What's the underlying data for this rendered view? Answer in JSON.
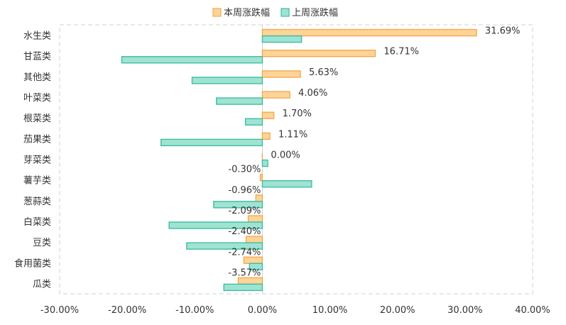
{
  "chart_data": {
    "type": "bar",
    "orientation": "horizontal",
    "categories": [
      "水生类",
      "甘蓝类",
      "其他类",
      "叶菜类",
      "根菜类",
      "茄果类",
      "芽菜类",
      "薯芋类",
      "葱蒜类",
      "白菜类",
      "豆类",
      "食用菌类",
      "瓜类"
    ],
    "series": [
      {
        "name": "本周涨跌幅",
        "values": [
          31.69,
          16.71,
          5.63,
          4.06,
          1.7,
          1.11,
          0.0,
          -0.3,
          -0.96,
          -2.09,
          -2.4,
          -2.74,
          -3.57
        ],
        "data_labels": [
          "31.69%",
          "16.71%",
          "5.63%",
          "4.06%",
          "1.70%",
          "1.11%",
          "0.00%",
          "-0.30%",
          "-0.96%",
          "-2.09%",
          "-2.40%",
          "-2.74%",
          "-3.57%"
        ],
        "fill": "#FDD49A",
        "stroke": "#F5A94A"
      },
      {
        "name": "上周涨跌幅",
        "values": [
          5.8,
          -20.8,
          -10.4,
          -6.8,
          -2.5,
          -15.0,
          0.8,
          7.3,
          -7.2,
          -13.8,
          -11.2,
          -1.9,
          -5.7
        ],
        "fill": "#A0E3D3",
        "stroke": "#3DBFA0"
      }
    ],
    "xlim": [
      -30,
      40
    ],
    "x_ticks": [
      "-30.00%",
      "-20.00%",
      "-10.00%",
      "0.00%",
      "10.00%",
      "20.00%",
      "30.00%",
      "40.00%"
    ],
    "x_tick_values": [
      -30,
      -20,
      -10,
      0,
      10,
      20,
      30,
      40
    ],
    "legend_position": "top-center",
    "grid": false,
    "title": "",
    "xlabel": "",
    "ylabel": ""
  }
}
